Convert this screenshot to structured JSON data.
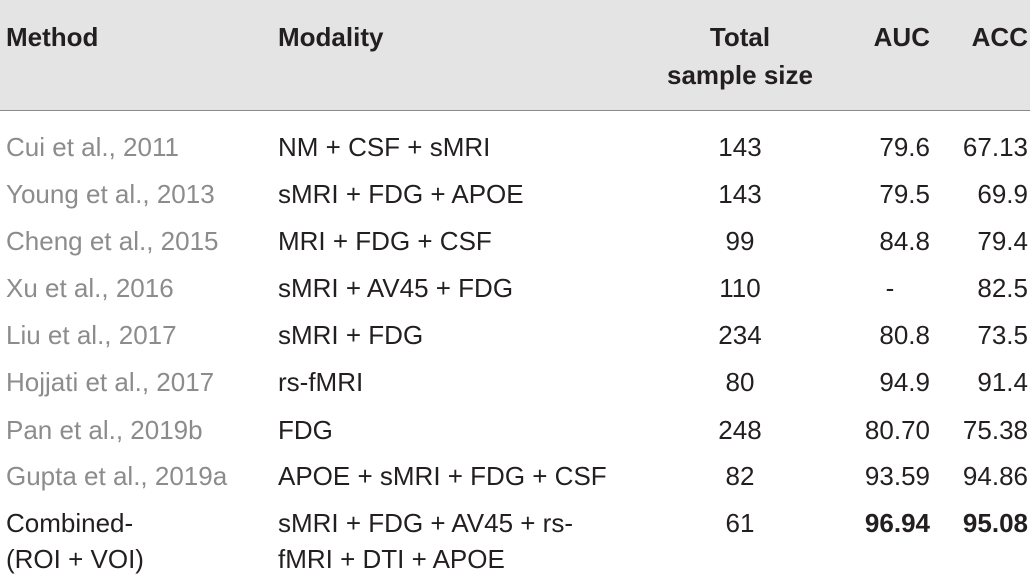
{
  "headers": {
    "method": "Method",
    "modality": "Modality",
    "size_line1": "Total",
    "size_line2": "sample size",
    "auc": "AUC",
    "acc": "ACC"
  },
  "rows": [
    {
      "method": "Cui et al., 2011",
      "modality": "NM + CSF + sMRI",
      "size": "143",
      "auc": "79.6",
      "acc": "67.13"
    },
    {
      "method": "Young et al., 2013",
      "modality": "sMRI + FDG + APOE",
      "size": "143",
      "auc": "79.5",
      "acc": "69.9"
    },
    {
      "method": "Cheng et al., 2015",
      "modality": "MRI + FDG + CSF",
      "size": "99",
      "auc": "84.8",
      "acc": "79.4"
    },
    {
      "method": "Xu et al., 2016",
      "modality": "sMRI + AV45 + FDG",
      "size": "110",
      "auc": "-",
      "acc": "82.5"
    },
    {
      "method": "Liu et al., 2017",
      "modality": "sMRI + FDG",
      "size": "234",
      "auc": "80.8",
      "acc": "73.5"
    },
    {
      "method": "Hojjati et al., 2017",
      "modality": "rs-fMRI",
      "size": "80",
      "auc": "94.9",
      "acc": "91.4"
    },
    {
      "method": "Pan et al., 2019b",
      "modality": "FDG",
      "size": "248",
      "auc": "80.70",
      "acc": "75.38"
    },
    {
      "method": "Gupta et al., 2019a",
      "modality": "APOE + sMRI + FDG + CSF",
      "size": "82",
      "auc": "93.59",
      "acc": "94.86"
    }
  ],
  "last_row": {
    "method_line1": "Combined-",
    "method_line2": "(ROI + VOI)",
    "modality_line1": "sMRI + FDG + AV45 + rs-",
    "modality_line2": "fMRI + DTI + APOE",
    "size": "61",
    "auc": "96.94",
    "acc": "95.08"
  }
}
